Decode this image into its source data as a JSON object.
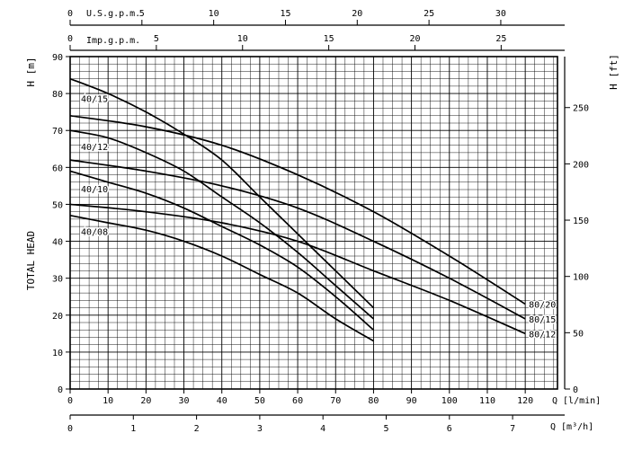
{
  "chart_data": {
    "type": "line",
    "xlabel": "Q [l/min]",
    "ylabel": "H [m]",
    "ylabel_vertical": "TOTAL HEAD",
    "xlim": [
      0,
      120
    ],
    "ylim": [
      0,
      90
    ],
    "x_ticks": [
      0,
      10,
      20,
      30,
      40,
      50,
      60,
      70,
      80,
      90,
      100,
      110,
      120
    ],
    "y_ticks": [
      0,
      10,
      20,
      30,
      40,
      50,
      60,
      70,
      80,
      90
    ],
    "grid": true,
    "right_axis": {
      "label": "H [ft]",
      "ticks": [
        0,
        50,
        100,
        150,
        200,
        250
      ],
      "m_per_unit": 0.3048
    },
    "top_axes": [
      {
        "label": "U.S.g.p.m.",
        "ticks": [
          0,
          5,
          10,
          15,
          20,
          25,
          30
        ],
        "lpm_per_unit": 3.785
      },
      {
        "label": "Imp.g.p.m.",
        "ticks": [
          0,
          5,
          10,
          15,
          20,
          25
        ],
        "lpm_per_unit": 4.546
      }
    ],
    "bottom_axis2": {
      "label": "Q [m³/h]",
      "ticks": [
        0,
        1,
        2,
        3,
        4,
        5,
        6,
        7
      ],
      "lpm_per_unit": 16.667
    },
    "series": [
      {
        "name": "40/15",
        "x": [
          0,
          10,
          20,
          30,
          40,
          50,
          60,
          70,
          80
        ],
        "values": [
          84,
          80,
          75,
          69,
          62,
          52,
          42,
          32,
          22
        ]
      },
      {
        "name": "40/12",
        "x": [
          0,
          10,
          20,
          30,
          40,
          50,
          60,
          70,
          80
        ],
        "values": [
          70,
          68,
          64,
          59,
          52,
          45,
          37,
          28,
          19
        ]
      },
      {
        "name": "40/10",
        "x": [
          0,
          10,
          20,
          30,
          40,
          50,
          60,
          70,
          80
        ],
        "values": [
          59,
          56,
          53,
          49,
          44,
          39,
          33,
          25,
          16
        ]
      },
      {
        "name": "40/08",
        "x": [
          0,
          10,
          20,
          30,
          40,
          50,
          60,
          70,
          80
        ],
        "values": [
          47,
          45,
          43,
          40,
          36,
          31,
          26,
          19,
          13
        ]
      },
      {
        "name": "80/20",
        "x": [
          0,
          20,
          40,
          60,
          80,
          100,
          120
        ],
        "values": [
          74,
          71,
          66,
          58,
          48,
          36,
          23
        ]
      },
      {
        "name": "80/15",
        "x": [
          0,
          20,
          40,
          60,
          80,
          100,
          120
        ],
        "values": [
          62,
          59,
          55,
          49,
          40,
          30,
          19
        ]
      },
      {
        "name": "80/12",
        "x": [
          0,
          20,
          40,
          60,
          80,
          100,
          120
        ],
        "values": [
          50,
          48,
          45,
          40,
          32,
          24,
          15
        ]
      }
    ]
  }
}
